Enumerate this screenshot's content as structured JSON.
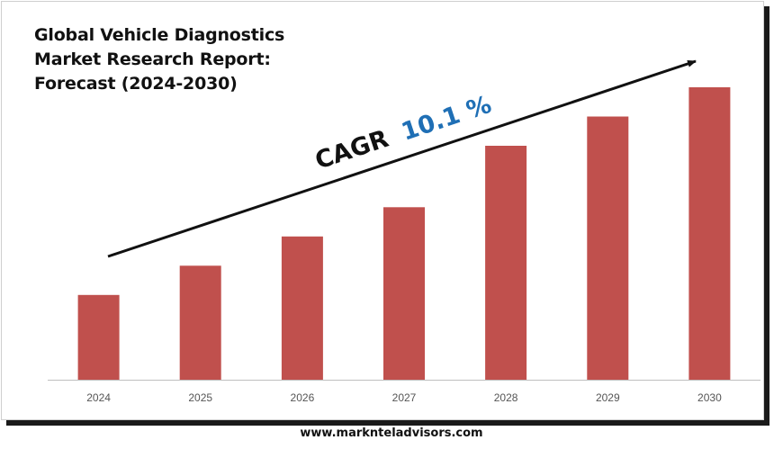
{
  "title_lines": [
    "Global Vehicle Diagnostics",
    "Market Research Report:",
    "Forecast (2024-2030)"
  ],
  "cagr": {
    "label": "CAGR",
    "value": "10.1 %",
    "label_color": "#111111",
    "value_color": "#1f6fb5"
  },
  "website": "www.marknteladvisors.com",
  "colors": {
    "bar": "#c0504d",
    "axis": "#bfbfbf",
    "tick_text": "#555555",
    "arrow": "#111111"
  },
  "chart_data": {
    "type": "bar",
    "title": "Global Vehicle Diagnostics Market Research Report: Forecast (2024-2030)",
    "categories": [
      "2024",
      "2025",
      "2026",
      "2027",
      "2028",
      "2029",
      "2030"
    ],
    "values": [
      29,
      39,
      49,
      59,
      80,
      90,
      100
    ],
    "ylim": [
      0,
      100
    ],
    "xlabel": "",
    "ylabel": "",
    "grid": false,
    "legend": "none",
    "annotations": [
      "CAGR 10.1 %"
    ]
  }
}
